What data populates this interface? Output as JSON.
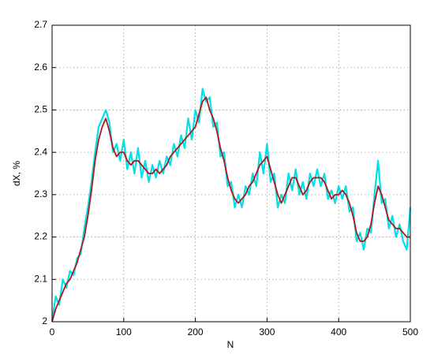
{
  "chart_data": {
    "type": "line",
    "x_label": "N",
    "y_label": "dX, %",
    "x": [
      0,
      5,
      10,
      15,
      20,
      25,
      30,
      35,
      40,
      45,
      50,
      55,
      60,
      65,
      70,
      75,
      80,
      85,
      90,
      95,
      100,
      105,
      110,
      115,
      120,
      125,
      130,
      135,
      140,
      145,
      150,
      155,
      160,
      165,
      170,
      175,
      180,
      185,
      190,
      195,
      200,
      205,
      210,
      215,
      220,
      225,
      230,
      235,
      240,
      245,
      250,
      255,
      260,
      265,
      270,
      275,
      280,
      285,
      290,
      295,
      300,
      305,
      310,
      315,
      320,
      325,
      330,
      335,
      340,
      345,
      350,
      355,
      360,
      365,
      370,
      375,
      380,
      385,
      390,
      395,
      400,
      405,
      410,
      415,
      420,
      425,
      430,
      435,
      440,
      445,
      450,
      455,
      460,
      465,
      470,
      475,
      480,
      485,
      490,
      495,
      500
    ],
    "series": [
      {
        "color": "#00e0e8",
        "values": [
          2.0,
          2.06,
          2.04,
          2.1,
          2.08,
          2.12,
          2.11,
          2.15,
          2.16,
          2.22,
          2.27,
          2.33,
          2.4,
          2.46,
          2.48,
          2.5,
          2.47,
          2.4,
          2.42,
          2.38,
          2.43,
          2.36,
          2.4,
          2.35,
          2.41,
          2.34,
          2.38,
          2.33,
          2.37,
          2.34,
          2.38,
          2.35,
          2.39,
          2.37,
          2.42,
          2.39,
          2.44,
          2.41,
          2.48,
          2.43,
          2.5,
          2.47,
          2.55,
          2.52,
          2.53,
          2.46,
          2.47,
          2.39,
          2.4,
          2.32,
          2.33,
          2.27,
          2.3,
          2.27,
          2.32,
          2.3,
          2.35,
          2.32,
          2.4,
          2.35,
          2.42,
          2.33,
          2.35,
          2.27,
          2.3,
          2.28,
          2.35,
          2.31,
          2.36,
          2.3,
          2.33,
          2.29,
          2.35,
          2.32,
          2.36,
          2.32,
          2.35,
          2.29,
          2.31,
          2.28,
          2.32,
          2.29,
          2.32,
          2.26,
          2.27,
          2.19,
          2.21,
          2.17,
          2.22,
          2.21,
          2.3,
          2.38,
          2.28,
          2.29,
          2.22,
          2.25,
          2.2,
          2.23,
          2.19,
          2.17,
          2.27
        ]
      },
      {
        "color": "#b01818",
        "values": [
          2.0,
          2.03,
          2.05,
          2.07,
          2.09,
          2.1,
          2.12,
          2.14,
          2.17,
          2.2,
          2.25,
          2.31,
          2.38,
          2.43,
          2.46,
          2.48,
          2.45,
          2.41,
          2.39,
          2.4,
          2.4,
          2.38,
          2.37,
          2.38,
          2.38,
          2.37,
          2.36,
          2.35,
          2.35,
          2.36,
          2.35,
          2.36,
          2.37,
          2.39,
          2.4,
          2.41,
          2.42,
          2.43,
          2.44,
          2.45,
          2.46,
          2.49,
          2.52,
          2.53,
          2.5,
          2.48,
          2.45,
          2.41,
          2.38,
          2.34,
          2.31,
          2.29,
          2.28,
          2.29,
          2.3,
          2.32,
          2.33,
          2.35,
          2.37,
          2.38,
          2.39,
          2.36,
          2.33,
          2.3,
          2.28,
          2.3,
          2.32,
          2.34,
          2.34,
          2.32,
          2.3,
          2.31,
          2.33,
          2.34,
          2.34,
          2.34,
          2.33,
          2.31,
          2.29,
          2.3,
          2.3,
          2.31,
          2.3,
          2.28,
          2.25,
          2.21,
          2.19,
          2.19,
          2.2,
          2.23,
          2.28,
          2.32,
          2.3,
          2.27,
          2.24,
          2.23,
          2.22,
          2.22,
          2.21,
          2.2,
          2.2
        ]
      }
    ],
    "xlim": [
      0,
      500
    ],
    "xticks": [
      0,
      100,
      200,
      300,
      400,
      500
    ],
    "ylim": [
      2,
      2.7
    ],
    "yticks": [
      2,
      2.1,
      2.2,
      2.3,
      2.4,
      2.5,
      2.6,
      2.7
    ],
    "grid": true
  }
}
